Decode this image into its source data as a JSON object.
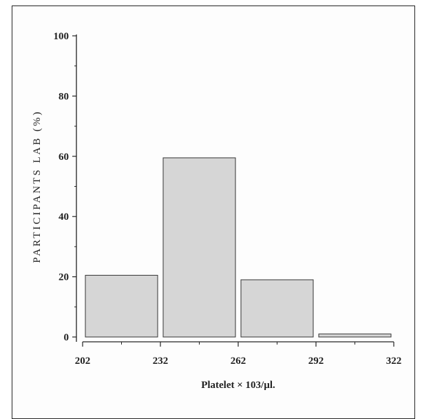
{
  "chart_data": {
    "type": "bar",
    "title": "",
    "xlabel": "Platelet × 103/µl.",
    "ylabel": "PARTICIPANTS LAB (%)",
    "ylim": [
      0,
      100
    ],
    "yticks": [
      0,
      20,
      40,
      60,
      80,
      100
    ],
    "xticks": [
      202,
      232,
      262,
      292,
      322
    ],
    "bins": [
      {
        "from": 202,
        "to": 232,
        "value": 20.5
      },
      {
        "from": 232,
        "to": 262,
        "value": 59.5
      },
      {
        "from": 262,
        "to": 292,
        "value": 19
      },
      {
        "from": 292,
        "to": 322,
        "value": 1
      }
    ],
    "bar_color": "#d6d6d6",
    "bar_edge_color": "#333333",
    "grid": false
  }
}
